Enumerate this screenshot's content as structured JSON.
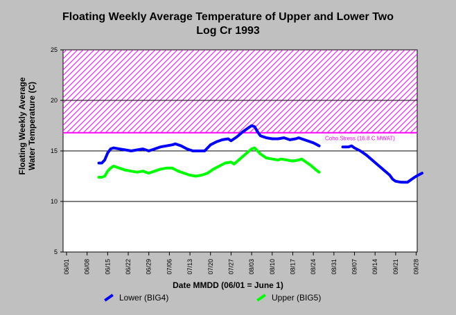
{
  "chart_data": {
    "type": "line",
    "title_line1": "Floating Weekly Average Temperature of Upper and Lower Two",
    "title_line2": "Log Cr 1993",
    "ylabel_line1": "Floating Weekly Average",
    "ylabel_line2": "Water Temperature (C)",
    "xlabel": "Date MMDD (06/01 = June 1)",
    "ylim": [
      5,
      25
    ],
    "yticks": [
      5,
      10,
      15,
      20,
      25
    ],
    "xticks": [
      "06/01",
      "06/08",
      "06/15",
      "06/22",
      "06/29",
      "07/06",
      "07/13",
      "07/20",
      "07/27",
      "08/03",
      "08/10",
      "08/17",
      "08/24",
      "08/31",
      "09/07",
      "09/14",
      "09/21",
      "09/28"
    ],
    "grid_y": true,
    "threshold": {
      "value": 16.8,
      "label": "Coho Stress (16.8 C MWAT)",
      "color": "#ff00ff"
    },
    "series": [
      {
        "name": "Lower (BIG4)",
        "color": "#0000ff",
        "points": [
          [
            11,
            13.8
          ],
          [
            12,
            13.8
          ],
          [
            13,
            14.1
          ],
          [
            14,
            14.8
          ],
          [
            15,
            15.2
          ],
          [
            16,
            15.3
          ],
          [
            18,
            15.2
          ],
          [
            20,
            15.1
          ],
          [
            22,
            15.0
          ],
          [
            24,
            15.1
          ],
          [
            26,
            15.2
          ],
          [
            28,
            15.0
          ],
          [
            30,
            15.2
          ],
          [
            32,
            15.4
          ],
          [
            34,
            15.5
          ],
          [
            36,
            15.6
          ],
          [
            37,
            15.7
          ],
          [
            39,
            15.5
          ],
          [
            41,
            15.2
          ],
          [
            43,
            15.0
          ],
          [
            45,
            15.0
          ],
          [
            47,
            15.0
          ],
          [
            49,
            15.6
          ],
          [
            51,
            15.9
          ],
          [
            53,
            16.1
          ],
          [
            55,
            16.2
          ],
          [
            56,
            16.0
          ],
          [
            58,
            16.4
          ],
          [
            60,
            16.9
          ],
          [
            62,
            17.3
          ],
          [
            63,
            17.5
          ],
          [
            64,
            17.4
          ],
          [
            65,
            16.9
          ],
          [
            66,
            16.5
          ],
          [
            68,
            16.3
          ],
          [
            70,
            16.2
          ],
          [
            72,
            16.2
          ],
          [
            74,
            16.3
          ],
          [
            76,
            16.1
          ],
          [
            78,
            16.2
          ],
          [
            79,
            16.3
          ],
          [
            80,
            16.2
          ],
          [
            82,
            16.0
          ],
          [
            84,
            15.8
          ],
          [
            86,
            15.5
          ],
          null,
          [
            94,
            15.4
          ],
          [
            96,
            15.4
          ],
          [
            97,
            15.5
          ],
          [
            98,
            15.3
          ],
          [
            100,
            15.0
          ],
          [
            102,
            14.6
          ],
          [
            104,
            14.1
          ],
          [
            106,
            13.6
          ],
          [
            108,
            13.1
          ],
          [
            110,
            12.6
          ],
          [
            111,
            12.2
          ],
          [
            112,
            12.0
          ],
          [
            114,
            11.9
          ],
          [
            116,
            11.9
          ],
          [
            118,
            12.3
          ],
          [
            119,
            12.5
          ],
          [
            121,
            12.8
          ]
        ]
      },
      {
        "name": "Upper (BIG5)",
        "color": "#00ff00",
        "points": [
          [
            11,
            12.4
          ],
          [
            12,
            12.4
          ],
          [
            13,
            12.5
          ],
          [
            14,
            13.0
          ],
          [
            15,
            13.3
          ],
          [
            16,
            13.5
          ],
          [
            18,
            13.3
          ],
          [
            20,
            13.1
          ],
          [
            22,
            13.0
          ],
          [
            24,
            12.9
          ],
          [
            26,
            13.0
          ],
          [
            27,
            12.9
          ],
          [
            28,
            12.8
          ],
          [
            30,
            13.0
          ],
          [
            32,
            13.2
          ],
          [
            34,
            13.3
          ],
          [
            36,
            13.3
          ],
          [
            38,
            13.0
          ],
          [
            40,
            12.8
          ],
          [
            42,
            12.6
          ],
          [
            44,
            12.5
          ],
          [
            46,
            12.6
          ],
          [
            48,
            12.8
          ],
          [
            50,
            13.2
          ],
          [
            52,
            13.5
          ],
          [
            54,
            13.8
          ],
          [
            56,
            13.9
          ],
          [
            57,
            13.7
          ],
          [
            59,
            14.2
          ],
          [
            61,
            14.7
          ],
          [
            63,
            15.2
          ],
          [
            64,
            15.3
          ],
          [
            65,
            15.0
          ],
          [
            66,
            14.7
          ],
          [
            68,
            14.3
          ],
          [
            70,
            14.2
          ],
          [
            72,
            14.1
          ],
          [
            73,
            14.2
          ],
          [
            75,
            14.1
          ],
          [
            77,
            14.0
          ],
          [
            79,
            14.1
          ],
          [
            80,
            14.2
          ],
          [
            81,
            14.0
          ],
          [
            83,
            13.6
          ],
          [
            85,
            13.1
          ],
          [
            86,
            12.9
          ]
        ]
      }
    ],
    "legend": [
      "Lower (BIG4)",
      "Upper (BIG5)"
    ],
    "legend_position": "bottom"
  }
}
